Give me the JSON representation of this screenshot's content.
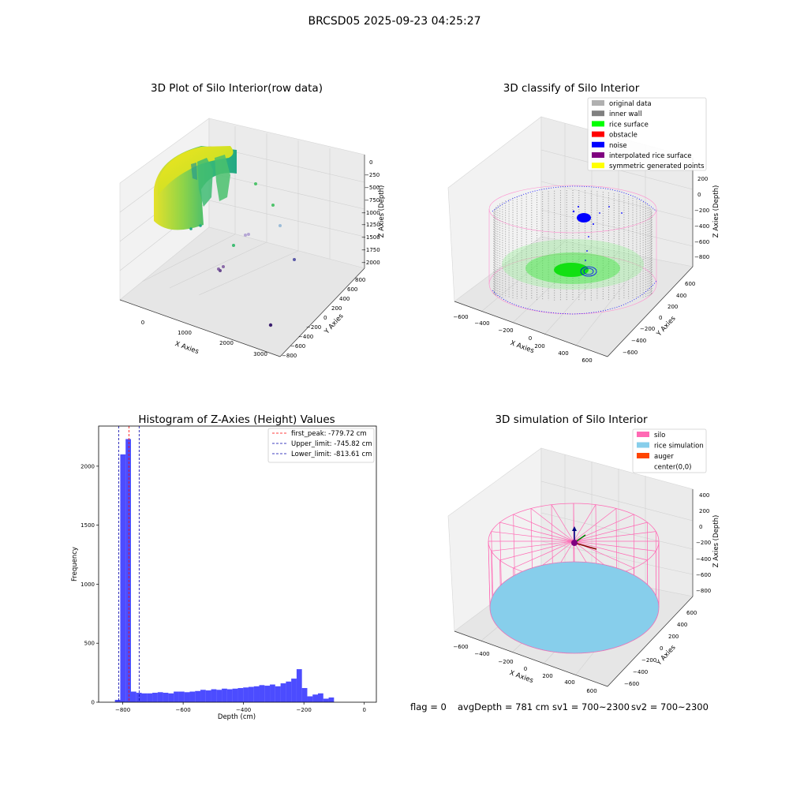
{
  "figure": {
    "suptitle": "BRCSD05 2025-09-23 04:25:27",
    "status": {
      "flag": "flag = 0",
      "avg_depth": "avgDepth = 781 cm",
      "sv1": "sv1 = 700~2300",
      "sv2": "sv2 = 700~2300"
    }
  },
  "chart_data": [
    {
      "type": "scatter",
      "projection": "3d",
      "title": "3D Plot of Silo Interior(row data)",
      "xlabel": "X Axies",
      "ylabel": "Y Axies",
      "zlabel": "Z Axies (Depth)",
      "x_ticks": [
        "0",
        "1000",
        "2000",
        "3000"
      ],
      "y_ticks": [
        "800",
        "600",
        "400",
        "200",
        "0",
        "−200",
        "−400",
        "−600",
        "−800"
      ],
      "z_ticks": [
        "0",
        "−250",
        "−500",
        "−750",
        "−1000",
        "−1250",
        "−1500",
        "−1750",
        "−2000"
      ],
      "grid": true,
      "colormap": "viridis"
    },
    {
      "type": "scatter",
      "projection": "3d",
      "title": "3D classify of Silo Interior",
      "xlabel": "X Axies",
      "ylabel": "Y Axies",
      "zlabel": "Z Axies (Depth)",
      "x_ticks": [
        "−600",
        "−400",
        "−200",
        "0",
        "200",
        "400",
        "600"
      ],
      "y_ticks": [
        "600",
        "400",
        "200",
        "0",
        "−200",
        "−400",
        "−600"
      ],
      "z_ticks": [
        "200",
        "0",
        "−200",
        "−400",
        "−600",
        "−800"
      ],
      "grid": true,
      "legend_position": "top-right",
      "legend": [
        {
          "label": "original data",
          "color": "#b0b0b0"
        },
        {
          "label": "inner wall",
          "color": "#808080"
        },
        {
          "label": "rice surface",
          "color": "#00ff00"
        },
        {
          "label": "obstacle",
          "color": "#ff0000"
        },
        {
          "label": "noise",
          "color": "#0000ff"
        },
        {
          "label": "interpolated rice surface",
          "color": "#800080"
        },
        {
          "label": "symmetric generated points",
          "color": "#ffff00"
        }
      ]
    },
    {
      "type": "bar",
      "title": "Histogram of Z-Axies (Height) Values",
      "xlabel": "Depth (cm)",
      "ylabel": "Frequency",
      "xlim": [
        -880,
        40
      ],
      "ylim": [
        0,
        2340
      ],
      "x_ticks": [
        -800,
        -600,
        -400,
        -200,
        0
      ],
      "y_ticks": [
        0,
        500,
        1000,
        1500,
        2000
      ],
      "bin_start": -826,
      "bin_width": 17.7,
      "values": [
        20,
        2100,
        2230,
        90,
        80,
        75,
        75,
        80,
        85,
        80,
        75,
        90,
        90,
        85,
        90,
        95,
        105,
        100,
        110,
        105,
        115,
        110,
        115,
        120,
        125,
        130,
        135,
        145,
        140,
        150,
        135,
        160,
        175,
        200,
        280,
        120,
        50,
        65,
        75,
        30,
        40
      ],
      "bar_color": "#0000ff",
      "bar_alpha": 0.7,
      "grid": false,
      "legend_position": "top-right",
      "lines": [
        {
          "label": "first_peak: -779.72 cm",
          "x": -779.72,
          "color": "#ff0000",
          "style": "dashed"
        },
        {
          "label": "Upper_limit: -745.82 cm",
          "x": -745.82,
          "color": "#0000aa",
          "style": "dashed"
        },
        {
          "label": "Lower_limit: -813.61 cm",
          "x": -813.61,
          "color": "#0000aa",
          "style": "dashed"
        }
      ]
    },
    {
      "type": "surface",
      "projection": "3d",
      "title": "3D simulation of Silo Interior",
      "xlabel": "X Axies",
      "ylabel": "Y Axies",
      "zlabel": "Z Axies (Depth)",
      "x_ticks": [
        "−600",
        "−400",
        "−200",
        "0",
        "200",
        "400",
        "600"
      ],
      "y_ticks": [
        "600",
        "400",
        "200",
        "0",
        "−200",
        "−400",
        "−600"
      ],
      "z_ticks": [
        "400",
        "200",
        "0",
        "−200",
        "−400",
        "−600",
        "−800"
      ],
      "grid": true,
      "legend_position": "top-right",
      "legend": [
        {
          "label": "silo",
          "color": "#ff69b4"
        },
        {
          "label": "rice simulation",
          "color": "#87ceeb"
        },
        {
          "label": "auger",
          "color": "#ff4500"
        },
        {
          "label": "center(0,0)",
          "color": ""
        }
      ]
    }
  ]
}
